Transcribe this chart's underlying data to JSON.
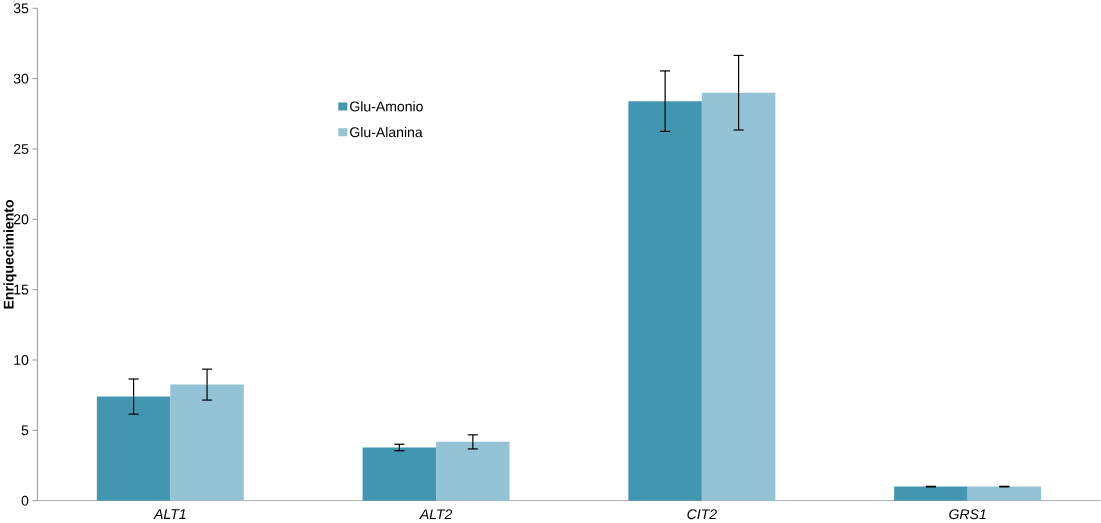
{
  "chart_data": {
    "type": "bar",
    "ylabel": "Enriquecimiento",
    "categories": [
      "ALT1",
      "ALT2",
      "CIT2",
      "GRS1"
    ],
    "series": [
      {
        "name": "Glu-Amonio",
        "color": "#4396b0",
        "values": [
          7.4,
          3.78,
          28.4,
          1.0
        ],
        "errors": [
          1.25,
          0.23,
          2.15,
          0.02
        ]
      },
      {
        "name": "Glu-Alanina",
        "color": "#93c3d5",
        "values": [
          8.25,
          4.18,
          29.0,
          1.0
        ],
        "errors": [
          1.1,
          0.5,
          2.65,
          0.02
        ]
      }
    ],
    "ylim": [
      0,
      35
    ],
    "yticks": [
      0,
      5,
      10,
      15,
      20,
      25,
      30,
      35
    ],
    "grid": false,
    "legend": "top left"
  }
}
